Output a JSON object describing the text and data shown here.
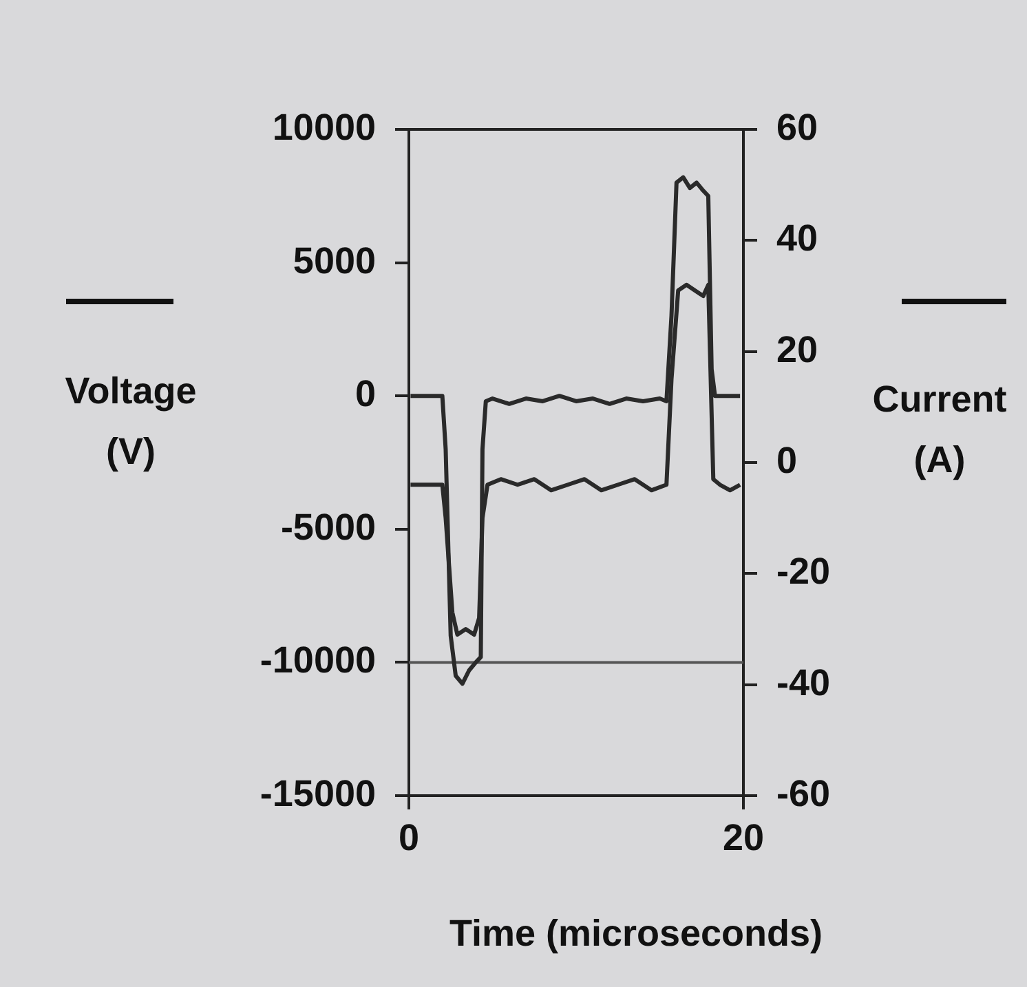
{
  "chart_data": {
    "type": "line",
    "xlabel": "Time (microseconds)",
    "ylabel": "Voltage (V)",
    "y2label": "Current (A)",
    "xlim": [
      0,
      20
    ],
    "xticks": [
      0,
      20
    ],
    "ylim": [
      -15000,
      10000
    ],
    "yticks": [
      -15000,
      -10000,
      -5000,
      0,
      5000,
      10000
    ],
    "y2lim": [
      -60,
      60
    ],
    "y2ticks": [
      -60,
      -40,
      -20,
      0,
      20,
      40,
      60
    ],
    "grid": false,
    "legend": false,
    "marker": "none",
    "line_style": "solid",
    "ref_lines": [
      {
        "axis": "y",
        "value": -10000,
        "color": "#555555"
      }
    ],
    "series": [
      {
        "color": "#2a2a2a",
        "x": [
          0.1,
          2.0,
          2.2,
          2.5,
          2.8,
          3.2,
          3.6,
          4.0,
          4.3,
          4.4,
          4.6,
          5,
          6,
          7,
          8,
          9,
          10,
          11,
          12,
          13,
          14,
          15,
          15.4,
          15.7,
          16.0,
          16.4,
          16.8,
          17.2,
          17.6,
          17.9,
          18.1,
          18.3,
          19,
          19.8
        ],
        "values": [
          0,
          0,
          -2000,
          -9000,
          -10500,
          -10800,
          -10300,
          -10000,
          -9800,
          -2000,
          -200,
          -100,
          -300,
          -100,
          -200,
          0,
          -200,
          -100,
          -300,
          -100,
          -200,
          -100,
          -200,
          3000,
          8000,
          8200,
          7800,
          8000,
          7700,
          7500,
          1000,
          0,
          0,
          0
        ]
      },
      {
        "color": "#2a2a2a",
        "axis": "y2",
        "x": [
          0.1,
          2.0,
          2.2,
          2.6,
          2.9,
          3.4,
          3.9,
          4.2,
          4.4,
          4.7,
          5.5,
          6.5,
          7.5,
          8.5,
          9.5,
          10.5,
          11.5,
          12.5,
          13.5,
          14.5,
          15.4,
          15.7,
          16.1,
          16.6,
          17.1,
          17.6,
          17.9,
          18.2,
          18.6,
          19.2,
          19.8
        ],
        "values": [
          -4,
          -4,
          -10,
          -27,
          -31,
          -30,
          -31,
          -28,
          -10,
          -4,
          -3,
          -4,
          -3,
          -5,
          -4,
          -3,
          -5,
          -4,
          -3,
          -5,
          -4,
          15,
          31,
          32,
          31,
          30,
          32,
          -3,
          -4,
          -5,
          -4
        ]
      }
    ]
  }
}
